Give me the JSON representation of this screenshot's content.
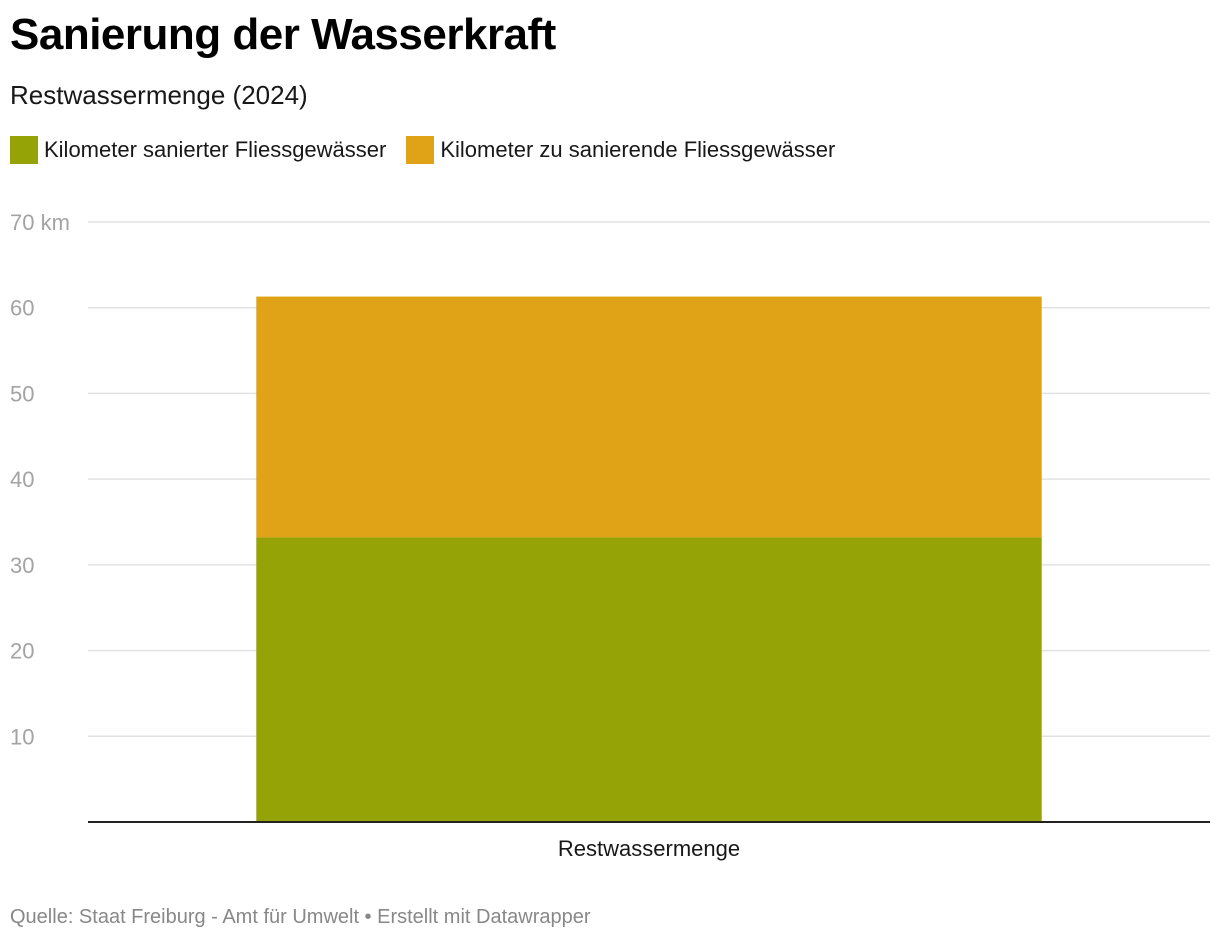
{
  "title": "Sanierung der Wasserkraft",
  "subtitle": "Restwassermenge (2024)",
  "legend": [
    {
      "label": "Kilometer sanierter Fliessgewässer",
      "color": "#95a306"
    },
    {
      "label": "Kilometer zu sanierende Fliessgewässer",
      "color": "#e0a217"
    }
  ],
  "source": "Quelle: Staat Freiburg - Amt für Umwelt • Erstellt mit Datawrapper",
  "chart_data": {
    "type": "bar",
    "stacked": true,
    "title": "Sanierung der Wasserkraft",
    "subtitle": "Restwassermenge (2024)",
    "categories": [
      "Restwassermenge"
    ],
    "series": [
      {
        "name": "Kilometer sanierter Fliessgewässer",
        "values": [
          33.2
        ],
        "color": "#95a306"
      },
      {
        "name": "Kilometer zu sanierende Fliessgewässer",
        "values": [
          28.1
        ],
        "color": "#e0a217"
      }
    ],
    "ylim": [
      0,
      70
    ],
    "yticks": [
      10,
      20,
      30,
      40,
      50,
      60,
      70
    ],
    "ytick_labels": [
      "10",
      "20",
      "30",
      "40",
      "50",
      "60",
      "70 km"
    ],
    "xlabel": "",
    "ylabel": "",
    "grid": true,
    "legend_position": "top-left"
  }
}
